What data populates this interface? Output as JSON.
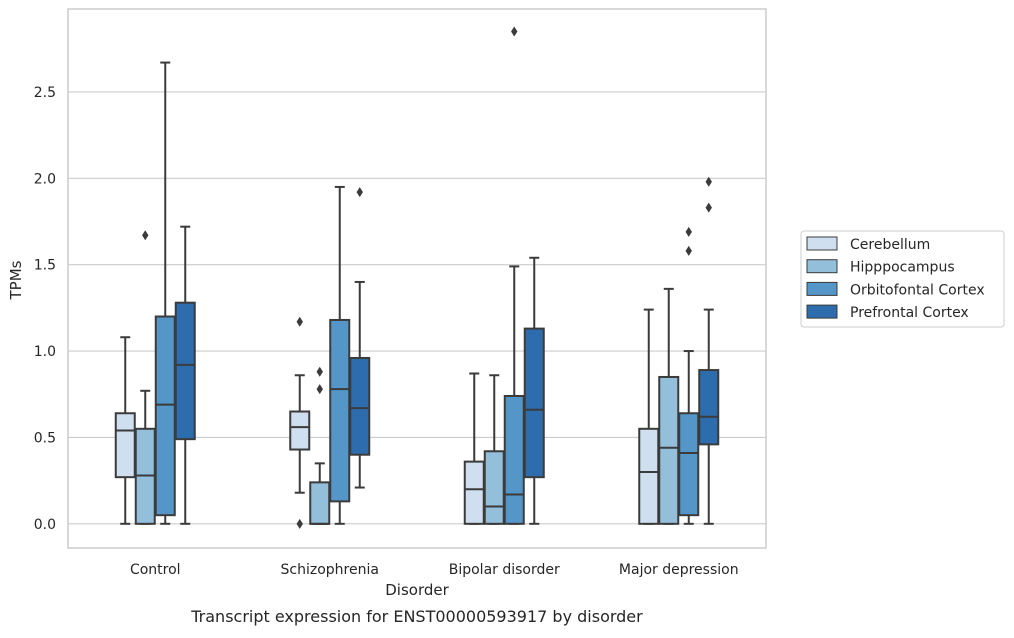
{
  "chart_data": {
    "type": "boxplot",
    "xlabel": "Disorder",
    "ylabel": "TPMs",
    "caption": "Transcript expression for ENST00000593917 by disorder",
    "ylim": [
      -0.14,
      2.98
    ],
    "yticks": [
      "0.0",
      "0.5",
      "1.0",
      "1.5",
      "2.0",
      "2.5"
    ],
    "grid": "horizontal",
    "legend_position": "right",
    "categories": [
      "Control",
      "Schizophrenia",
      "Bipolar disorder",
      "Major depression"
    ],
    "series": [
      {
        "name": "Cerebellum",
        "color": "#cfdff0",
        "boxes": [
          {
            "whislo": 0.0,
            "q1": 0.27,
            "med": 0.54,
            "q3": 0.64,
            "whishi": 1.08,
            "fliers": []
          },
          {
            "whislo": 0.18,
            "q1": 0.43,
            "med": 0.56,
            "q3": 0.65,
            "whishi": 0.86,
            "fliers": [
              0.0,
              1.17
            ]
          },
          {
            "whislo": 0.0,
            "q1": 0.0,
            "med": 0.2,
            "q3": 0.36,
            "whishi": 0.87,
            "fliers": []
          },
          {
            "whislo": 0.0,
            "q1": 0.0,
            "med": 0.3,
            "q3": 0.55,
            "whishi": 1.24,
            "fliers": []
          }
        ]
      },
      {
        "name": "Hipppocampus",
        "color": "#93bfdb",
        "boxes": [
          {
            "whislo": 0.0,
            "q1": 0.0,
            "med": 0.28,
            "q3": 0.55,
            "whishi": 0.77,
            "fliers": [
              1.67
            ]
          },
          {
            "whislo": 0.0,
            "q1": 0.0,
            "med": 0.0,
            "q3": 0.24,
            "whishi": 0.35,
            "fliers": [
              0.78,
              0.88
            ]
          },
          {
            "whislo": 0.0,
            "q1": 0.0,
            "med": 0.1,
            "q3": 0.42,
            "whishi": 0.86,
            "fliers": []
          },
          {
            "whislo": 0.0,
            "q1": 0.0,
            "med": 0.44,
            "q3": 0.85,
            "whishi": 1.36,
            "fliers": []
          }
        ]
      },
      {
        "name": "Orbitofontal Cortex",
        "color": "#5496c8",
        "boxes": [
          {
            "whislo": 0.0,
            "q1": 0.05,
            "med": 0.69,
            "q3": 1.2,
            "whishi": 2.67,
            "fliers": []
          },
          {
            "whislo": 0.0,
            "q1": 0.13,
            "med": 0.78,
            "q3": 1.18,
            "whishi": 1.95,
            "fliers": []
          },
          {
            "whislo": 0.0,
            "q1": 0.0,
            "med": 0.17,
            "q3": 0.74,
            "whishi": 1.49,
            "fliers": [
              2.85
            ]
          },
          {
            "whislo": 0.0,
            "q1": 0.05,
            "med": 0.41,
            "q3": 0.64,
            "whishi": 1.0,
            "fliers": [
              1.58,
              1.69
            ]
          }
        ]
      },
      {
        "name": "Prefrontal Cortex",
        "color": "#2d6dae",
        "boxes": [
          {
            "whislo": 0.0,
            "q1": 0.49,
            "med": 0.92,
            "q3": 1.28,
            "whishi": 1.72,
            "fliers": []
          },
          {
            "whislo": 0.21,
            "q1": 0.4,
            "med": 0.67,
            "q3": 0.96,
            "whishi": 1.4,
            "fliers": [
              1.92
            ]
          },
          {
            "whislo": 0.0,
            "q1": 0.27,
            "med": 0.66,
            "q3": 1.13,
            "whishi": 1.54,
            "fliers": []
          },
          {
            "whislo": 0.0,
            "q1": 0.46,
            "med": 0.62,
            "q3": 0.89,
            "whishi": 1.24,
            "fliers": [
              1.83,
              1.98
            ]
          }
        ]
      }
    ]
  }
}
